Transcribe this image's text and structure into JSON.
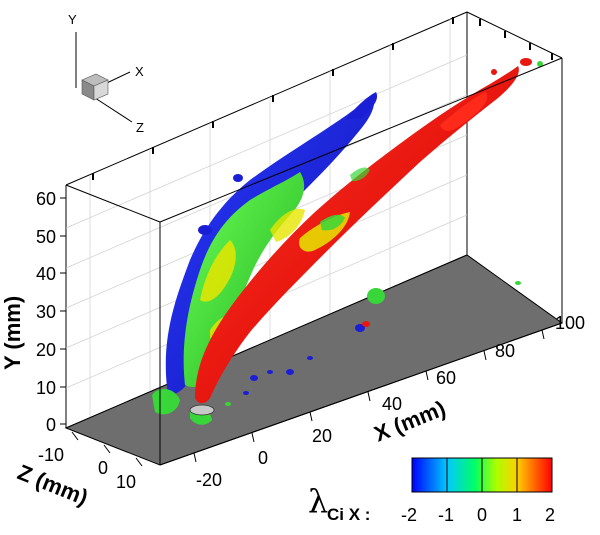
{
  "triad": {
    "y": "Y",
    "x": "X",
    "z": "Z"
  },
  "axes": {
    "y_label": "Y (mm)",
    "x_label": "X (mm)",
    "z_label": "Z (mm)",
    "y_ticks": [
      "60",
      "50",
      "40",
      "30",
      "20",
      "10",
      "0"
    ],
    "x_ticks": [
      "-20",
      "0",
      "20",
      "40",
      "60",
      "80",
      "100"
    ],
    "z_ticks": [
      "-10",
      "0",
      "10"
    ]
  },
  "colorbar": {
    "symbol": "λ",
    "subscript": "Ci X :",
    "ticks": [
      "-2",
      "-1",
      "0",
      "1",
      "2"
    ],
    "colors": [
      "#0000ff",
      "#00bfff",
      "#00ff80",
      "#a0ff20",
      "#ffff00",
      "#ff8000",
      "#ff0000"
    ]
  },
  "surface_colors": {
    "blue": "#1a1fd6",
    "green": "#38d638",
    "red": "#e8170f",
    "yellow": "#e6e600",
    "floor": "#6e6e6e"
  }
}
